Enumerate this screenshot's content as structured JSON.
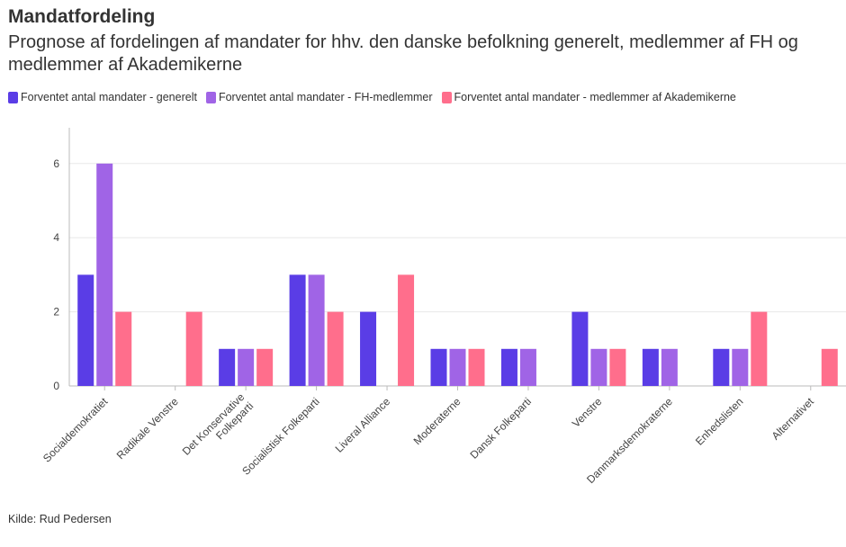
{
  "header": {
    "title": "Mandatfordeling",
    "subtitle": "Prognose af fordelingen af mandater for hhv. den danske befolkning generelt, medlemmer af FH og medlemmer af Akademikerne"
  },
  "footer": {
    "source": "Kilde: Rud Pedersen"
  },
  "chart_data": {
    "type": "bar",
    "categories": [
      "Socialdemokratiet",
      "Radikale Venstre",
      "Det Konservative Folkeparti",
      "Socialistisk Folkeparti",
      "Liveral Alliance",
      "Moderaterne",
      "Dansk Folkeparti",
      "Venstre",
      "Danmarksdemokraterne",
      "Enhedslisten",
      "Alternativet"
    ],
    "series": [
      {
        "name": "Forventet antal mandater - generelt",
        "color": "#5a3de6",
        "values": [
          3,
          0,
          1,
          3,
          2,
          1,
          1,
          2,
          1,
          1,
          0
        ]
      },
      {
        "name": "Forventet antal mandater - FH-medlemmer",
        "color": "#a064e6",
        "values": [
          6,
          0,
          1,
          3,
          0,
          1,
          1,
          1,
          1,
          1,
          0
        ]
      },
      {
        "name": "Forventet antal mandater - medlemmer af Akademikerne",
        "color": "#ff6e8c",
        "values": [
          2,
          2,
          1,
          2,
          3,
          1,
          0,
          1,
          0,
          2,
          1
        ]
      }
    ],
    "yticks": [
      0,
      2,
      4,
      6
    ],
    "ylim": [
      0,
      7
    ],
    "grid": true,
    "legend": "top-left"
  }
}
